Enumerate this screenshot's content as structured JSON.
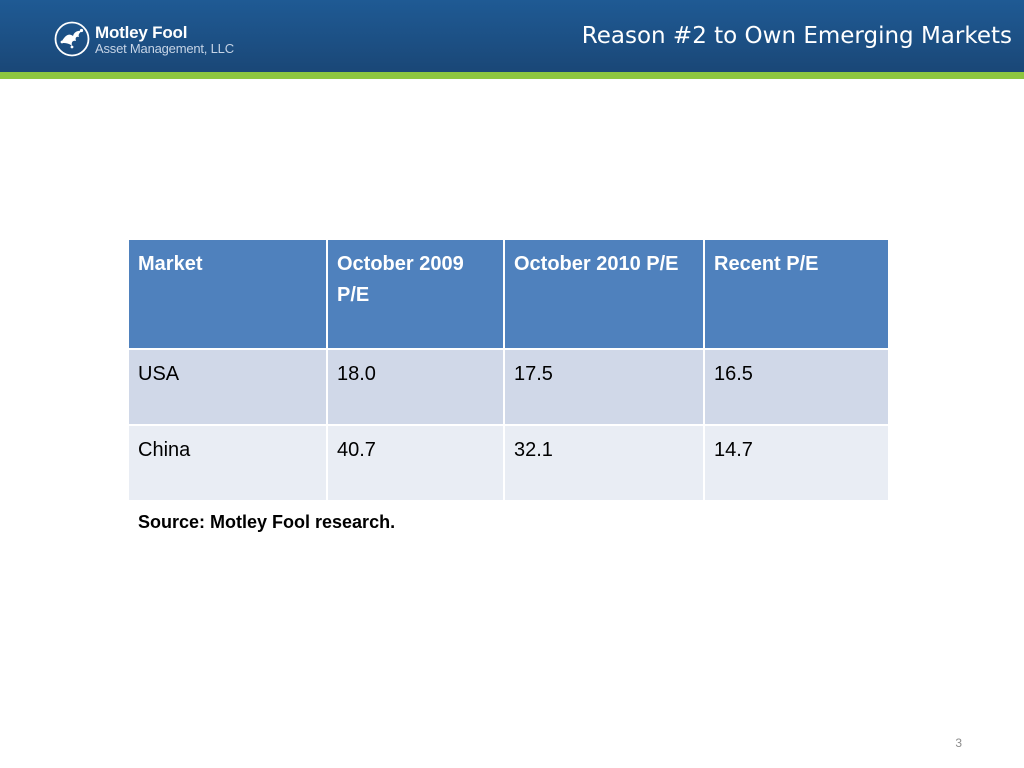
{
  "header": {
    "logo": {
      "name": "Motley Fool",
      "subtitle": "Asset Management, LLC",
      "icon": "jester-logo-icon"
    },
    "title": "Reason #2 to Own Emerging Markets"
  },
  "table": {
    "columns": [
      "Market",
      "October 2009 P/E",
      "October 2010 P/E",
      "Recent P/E"
    ],
    "rows": [
      [
        "USA",
        "18.0",
        "17.5",
        "16.5"
      ],
      [
        "China",
        "40.7",
        "32.1",
        "14.7"
      ]
    ]
  },
  "source": "Source: Motley Fool research.",
  "page_number": "3",
  "colors": {
    "header_bg": "#1c4f83",
    "accent_stripe": "#8dc63f",
    "table_header": "#4f81bd",
    "row_odd": "#d0d8e8",
    "row_even": "#e9edf4"
  }
}
